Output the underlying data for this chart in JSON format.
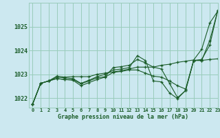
{
  "title": "Graphe pression niveau de la mer (hPa)",
  "background_color": "#cce8f0",
  "grid_color": "#99ccbb",
  "line_color": "#1a5c28",
  "xlim": [
    -0.5,
    23
  ],
  "ylim": [
    1021.6,
    1026.0
  ],
  "yticks": [
    1022,
    1023,
    1024,
    1025
  ],
  "xticks": [
    0,
    1,
    2,
    3,
    4,
    5,
    6,
    7,
    8,
    9,
    10,
    11,
    12,
    13,
    14,
    15,
    16,
    17,
    18,
    19,
    20,
    21,
    22,
    23
  ],
  "series": [
    [
      1021.75,
      1022.62,
      1022.72,
      1022.92,
      1022.88,
      1022.9,
      1022.9,
      1022.9,
      1023.0,
      1023.05,
      1023.1,
      1023.15,
      1023.22,
      1023.3,
      1023.3,
      1023.3,
      1023.38,
      1023.42,
      1023.5,
      1023.55,
      1023.6,
      1024.05,
      1025.15,
      1025.65
    ],
    [
      1021.75,
      1022.62,
      1022.72,
      1022.82,
      1022.78,
      1022.78,
      1022.6,
      1022.72,
      1022.85,
      1022.9,
      1023.28,
      1023.32,
      1023.38,
      1023.62,
      1023.48,
      1023.3,
      1023.22,
      1022.62,
      1022.02,
      1022.32,
      1023.58,
      1023.58,
      1023.62,
      1023.65
    ],
    [
      1021.75,
      1022.62,
      1022.72,
      1022.88,
      1022.85,
      1022.82,
      1022.62,
      1022.75,
      1022.9,
      1023.0,
      1023.18,
      1023.22,
      1023.28,
      1023.78,
      1023.58,
      1022.72,
      1022.68,
      1022.22,
      1021.98,
      1022.32,
      1023.58,
      1023.62,
      1024.22,
      1025.68
    ],
    [
      1021.75,
      1022.62,
      1022.72,
      1022.82,
      1022.78,
      1022.75,
      1022.52,
      1022.65,
      1022.78,
      1022.88,
      1023.08,
      1023.12,
      1023.18,
      1023.18,
      1023.05,
      1022.92,
      1022.88,
      1022.72,
      1022.52,
      1022.38,
      1023.58,
      1023.58,
      1024.42,
      1025.68
    ]
  ]
}
